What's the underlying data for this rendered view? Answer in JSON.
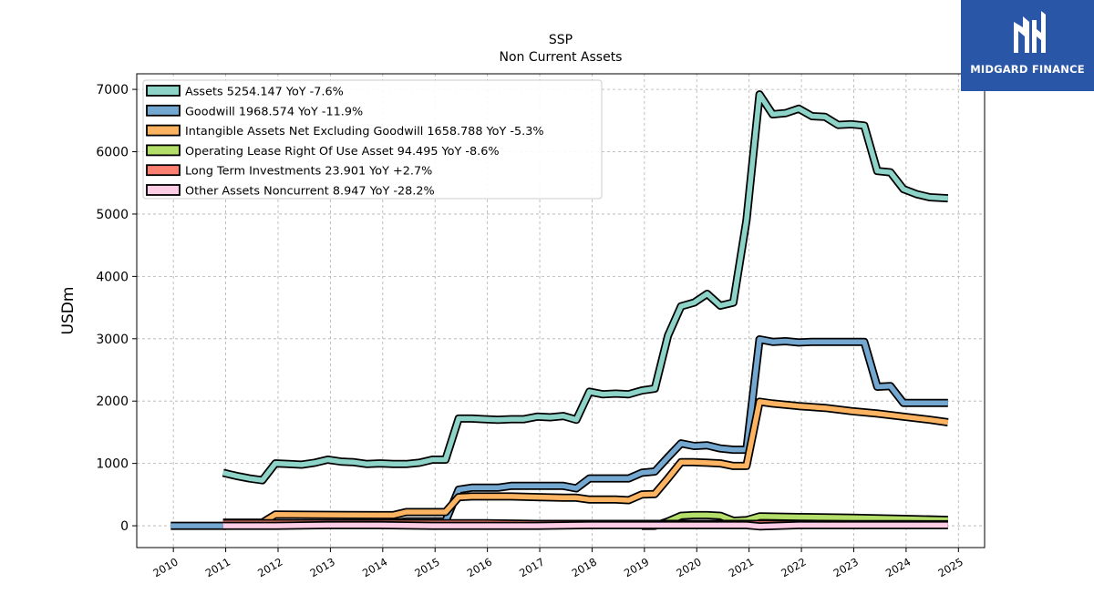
{
  "logo": {
    "text": "MIDGARD FINANCE",
    "icon": "midgard-logo-icon",
    "background": "#2a56a8"
  },
  "chart_data": {
    "type": "line",
    "title": "SSP",
    "subtitle": "Non Current  Assets",
    "xlabel": "",
    "ylabel": "USDm",
    "xlim": [
      2009.3,
      2025.5
    ],
    "ylim": [
      -350,
      7250
    ],
    "grid": true,
    "legend_position": "top-left",
    "x_ticks": [
      "2010",
      "2011",
      "2012",
      "2013",
      "2014",
      "2015",
      "2016",
      "2017",
      "2018",
      "2019",
      "2020",
      "2021",
      "2022",
      "2023",
      "2024",
      "2025"
    ],
    "y_ticks": [
      "0",
      "1000",
      "2000",
      "3000",
      "4000",
      "5000",
      "6000",
      "7000"
    ],
    "series": [
      {
        "name": "Assets",
        "legend": "Assets  5254.147 YoY -7.6%",
        "color": "#8dd3c7",
        "points": [
          [
            2010.95,
            850
          ],
          [
            2011.2,
            800
          ],
          [
            2011.45,
            760
          ],
          [
            2011.7,
            730
          ],
          [
            2011.95,
            1000
          ],
          [
            2012.2,
            990
          ],
          [
            2012.45,
            980
          ],
          [
            2012.7,
            1010
          ],
          [
            2012.95,
            1060
          ],
          [
            2013.2,
            1030
          ],
          [
            2013.45,
            1020
          ],
          [
            2013.7,
            990
          ],
          [
            2013.95,
            1000
          ],
          [
            2014.2,
            990
          ],
          [
            2014.45,
            990
          ],
          [
            2014.7,
            1010
          ],
          [
            2014.95,
            1060
          ],
          [
            2015.2,
            1060
          ],
          [
            2015.45,
            1720
          ],
          [
            2015.7,
            1720
          ],
          [
            2015.95,
            1710
          ],
          [
            2016.2,
            1700
          ],
          [
            2016.45,
            1710
          ],
          [
            2016.7,
            1710
          ],
          [
            2016.95,
            1750
          ],
          [
            2017.2,
            1740
          ],
          [
            2017.45,
            1760
          ],
          [
            2017.7,
            1700
          ],
          [
            2017.95,
            2150
          ],
          [
            2018.2,
            2110
          ],
          [
            2018.45,
            2120
          ],
          [
            2018.7,
            2110
          ],
          [
            2018.95,
            2170
          ],
          [
            2019.2,
            2200
          ],
          [
            2019.45,
            3050
          ],
          [
            2019.7,
            3520
          ],
          [
            2019.95,
            3580
          ],
          [
            2020.2,
            3720
          ],
          [
            2020.45,
            3530
          ],
          [
            2020.7,
            3580
          ],
          [
            2020.95,
            4900
          ],
          [
            2021.2,
            6920
          ],
          [
            2021.45,
            6600
          ],
          [
            2021.7,
            6620
          ],
          [
            2021.95,
            6690
          ],
          [
            2022.2,
            6570
          ],
          [
            2022.45,
            6560
          ],
          [
            2022.7,
            6430
          ],
          [
            2022.95,
            6440
          ],
          [
            2023.2,
            6420
          ],
          [
            2023.45,
            5690
          ],
          [
            2023.7,
            5670
          ],
          [
            2023.95,
            5400
          ],
          [
            2024.2,
            5320
          ],
          [
            2024.45,
            5270
          ],
          [
            2024.8,
            5254
          ]
        ]
      },
      {
        "name": "Goodwill",
        "legend": "Goodwill  1968.574 YoY -11.9%",
        "color": "#75a8d0",
        "points": [
          [
            2009.95,
            0
          ],
          [
            2010.95,
            0
          ],
          [
            2011.95,
            20
          ],
          [
            2012.95,
            20
          ],
          [
            2013.95,
            20
          ],
          [
            2014.45,
            70
          ],
          [
            2015.2,
            70
          ],
          [
            2015.45,
            580
          ],
          [
            2015.7,
            610
          ],
          [
            2015.95,
            610
          ],
          [
            2016.2,
            610
          ],
          [
            2016.45,
            640
          ],
          [
            2016.7,
            640
          ],
          [
            2016.95,
            640
          ],
          [
            2017.2,
            640
          ],
          [
            2017.45,
            640
          ],
          [
            2017.7,
            600
          ],
          [
            2017.95,
            760
          ],
          [
            2018.2,
            760
          ],
          [
            2018.45,
            760
          ],
          [
            2018.7,
            760
          ],
          [
            2018.95,
            850
          ],
          [
            2019.2,
            870
          ],
          [
            2019.45,
            1100
          ],
          [
            2019.7,
            1320
          ],
          [
            2019.95,
            1280
          ],
          [
            2020.2,
            1290
          ],
          [
            2020.45,
            1240
          ],
          [
            2020.7,
            1220
          ],
          [
            2020.95,
            1220
          ],
          [
            2021.2,
            2990
          ],
          [
            2021.45,
            2950
          ],
          [
            2021.7,
            2960
          ],
          [
            2021.95,
            2940
          ],
          [
            2022.2,
            2950
          ],
          [
            2022.45,
            2950
          ],
          [
            2022.7,
            2950
          ],
          [
            2022.95,
            2950
          ],
          [
            2023.2,
            2950
          ],
          [
            2023.45,
            2230
          ],
          [
            2023.7,
            2240
          ],
          [
            2023.95,
            1970
          ],
          [
            2024.2,
            1970
          ],
          [
            2024.45,
            1970
          ],
          [
            2024.8,
            1969
          ]
        ]
      },
      {
        "name": "Intangible Assets Net Excluding Goodwill",
        "legend": "Intangible Assets Net Excluding Goodwill  1658.788 YoY -5.3%",
        "color": "#fdb462",
        "points": [
          [
            2010.95,
            50
          ],
          [
            2011.7,
            50
          ],
          [
            2011.95,
            180
          ],
          [
            2012.95,
            175
          ],
          [
            2013.95,
            170
          ],
          [
            2014.2,
            170
          ],
          [
            2014.45,
            220
          ],
          [
            2014.7,
            220
          ],
          [
            2015.2,
            220
          ],
          [
            2015.45,
            460
          ],
          [
            2015.7,
            470
          ],
          [
            2015.95,
            470
          ],
          [
            2016.45,
            470
          ],
          [
            2016.95,
            460
          ],
          [
            2017.45,
            450
          ],
          [
            2017.7,
            450
          ],
          [
            2017.95,
            420
          ],
          [
            2018.2,
            420
          ],
          [
            2018.45,
            420
          ],
          [
            2018.7,
            410
          ],
          [
            2018.95,
            500
          ],
          [
            2019.2,
            510
          ],
          [
            2019.45,
            760
          ],
          [
            2019.7,
            1020
          ],
          [
            2019.95,
            1020
          ],
          [
            2020.2,
            1010
          ],
          [
            2020.45,
            1000
          ],
          [
            2020.7,
            960
          ],
          [
            2020.95,
            960
          ],
          [
            2021.2,
            1990
          ],
          [
            2021.45,
            1960
          ],
          [
            2021.95,
            1920
          ],
          [
            2022.45,
            1890
          ],
          [
            2022.95,
            1840
          ],
          [
            2023.45,
            1800
          ],
          [
            2023.95,
            1750
          ],
          [
            2024.45,
            1700
          ],
          [
            2024.8,
            1659
          ]
        ]
      },
      {
        "name": "Operating Lease Right Of Use Asset",
        "legend": "Operating Lease Right Of Use Asset  94.495 YoY -8.6%",
        "color": "#b3de69",
        "points": [
          [
            2018.95,
            0
          ],
          [
            2019.2,
            0
          ],
          [
            2019.45,
            70
          ],
          [
            2019.7,
            160
          ],
          [
            2019.95,
            170
          ],
          [
            2020.2,
            170
          ],
          [
            2020.45,
            160
          ],
          [
            2020.7,
            80
          ],
          [
            2020.95,
            90
          ],
          [
            2021.2,
            150
          ],
          [
            2021.95,
            140
          ],
          [
            2022.95,
            130
          ],
          [
            2023.95,
            110
          ],
          [
            2024.8,
            94
          ]
        ]
      },
      {
        "name": "Long Term Investments",
        "legend": "Long Term Investments  23.901 YoY +2.7%",
        "color": "#fb8072",
        "points": [
          [
            2010.95,
            40
          ],
          [
            2011.95,
            40
          ],
          [
            2012.95,
            40
          ],
          [
            2013.95,
            40
          ],
          [
            2014.95,
            40
          ],
          [
            2015.95,
            40
          ],
          [
            2016.95,
            30
          ],
          [
            2017.95,
            30
          ],
          [
            2018.95,
            30
          ],
          [
            2019.95,
            30
          ],
          [
            2020.95,
            30
          ],
          [
            2021.95,
            30
          ],
          [
            2022.95,
            25
          ],
          [
            2023.95,
            25
          ],
          [
            2024.8,
            24
          ]
        ]
      },
      {
        "name": "Other Assets Noncurrent",
        "legend": "Other Assets Noncurrent  8.947 YoY -28.2%",
        "color": "#fccde5",
        "points": [
          [
            2010.95,
            0
          ],
          [
            2011.95,
            0
          ],
          [
            2012.95,
            10
          ],
          [
            2013.95,
            10
          ],
          [
            2014.95,
            0
          ],
          [
            2015.95,
            0
          ],
          [
            2016.95,
            0
          ],
          [
            2017.95,
            10
          ],
          [
            2018.95,
            10
          ],
          [
            2019.95,
            10
          ],
          [
            2020.95,
            10
          ],
          [
            2021.2,
            -10
          ],
          [
            2021.95,
            10
          ],
          [
            2022.95,
            10
          ],
          [
            2023.95,
            10
          ],
          [
            2024.8,
            9
          ]
        ]
      }
    ]
  }
}
